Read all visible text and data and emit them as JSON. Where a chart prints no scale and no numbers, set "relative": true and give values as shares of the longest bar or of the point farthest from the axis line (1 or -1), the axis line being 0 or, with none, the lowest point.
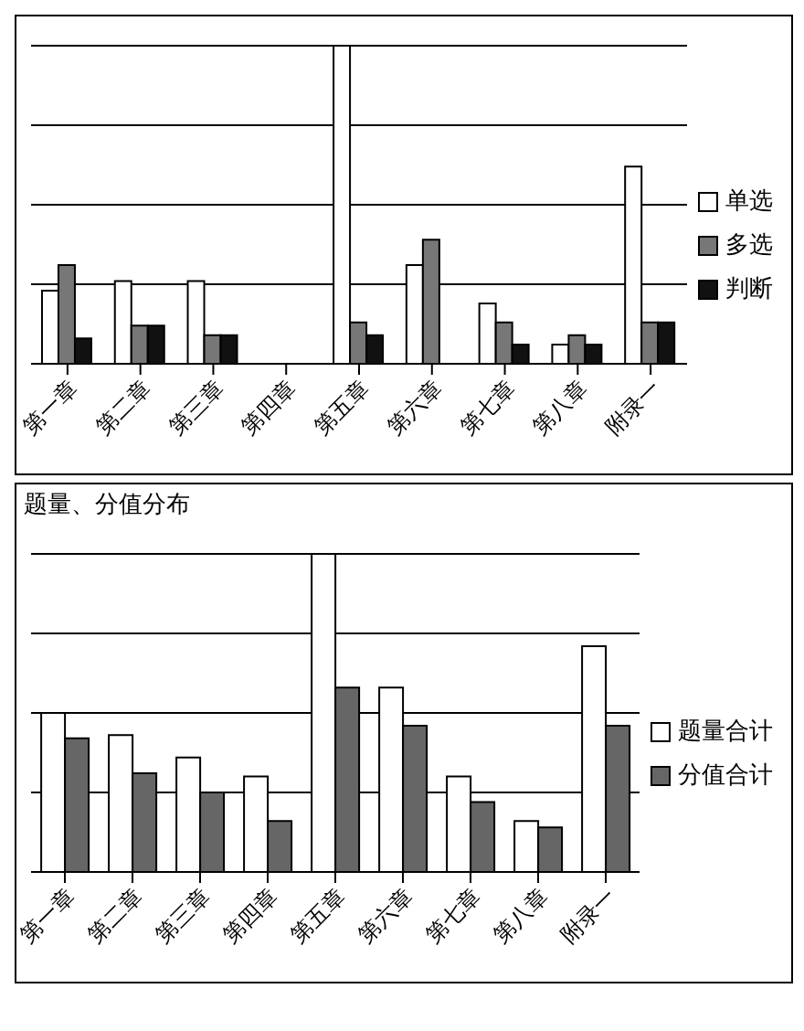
{
  "chart_data": [
    {
      "type": "bar",
      "relative": true,
      "grid": "y",
      "legend": "right",
      "categories": [
        "第一章",
        "第二章",
        "第三章",
        "第四章",
        "第五章",
        "第六章",
        "第七章",
        "第八章",
        "附录一"
      ],
      "series": [
        {
          "name": "单选",
          "color": "#ffffff",
          "values": [
            0.23,
            0.26,
            0.26,
            0,
            1,
            0.31,
            0.19,
            0.06,
            0.62
          ]
        },
        {
          "name": "多选",
          "color": "#777777",
          "values": [
            0.31,
            0.12,
            0.09,
            0,
            0.13,
            0.39,
            0.13,
            0.09,
            0.13
          ]
        },
        {
          "name": "判断",
          "color": "#111111",
          "values": [
            0.08,
            0.12,
            0.09,
            0,
            0.09,
            0,
            0.06,
            0.06,
            0.13
          ]
        }
      ]
    },
    {
      "type": "bar",
      "title": "题量、分值分布",
      "relative": true,
      "grid": "y",
      "legend": "right",
      "categories": [
        "第一章",
        "第二章",
        "第三章",
        "第四章",
        "第五章",
        "第六章",
        "第七章",
        "第八章",
        "附录一"
      ],
      "series": [
        {
          "name": "题量合计",
          "color": "#ffffff",
          "values": [
            0.5,
            0.43,
            0.36,
            0.3,
            1,
            0.58,
            0.3,
            0.16,
            0.71
          ]
        },
        {
          "name": "分值合计",
          "color": "#666666",
          "values": [
            0.42,
            0.31,
            0.25,
            0.16,
            0.58,
            0.46,
            0.22,
            0.14,
            0.46
          ]
        }
      ]
    }
  ]
}
